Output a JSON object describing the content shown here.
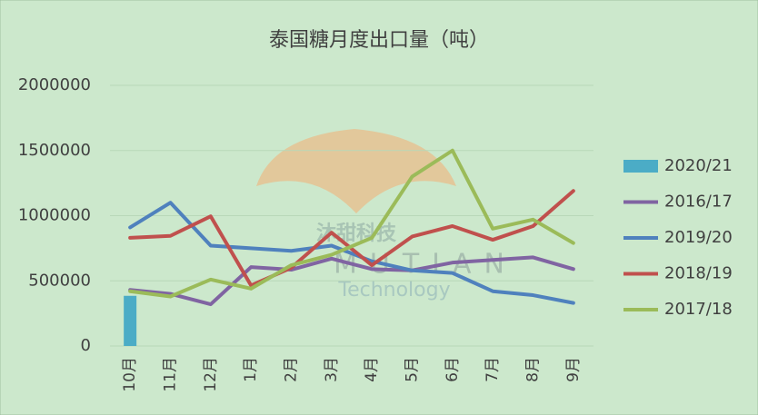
{
  "chart_data": {
    "type": "line",
    "title": "泰国糖月度出口量（吨）",
    "categories": [
      "10月",
      "11月",
      "12月",
      "1月",
      "2月",
      "3月",
      "4月",
      "5月",
      "6月",
      "7月",
      "8月",
      "9月"
    ],
    "ylim": [
      0,
      2000000
    ],
    "yticks": [
      0,
      500000,
      1000000,
      1500000,
      2000000
    ],
    "grid": true,
    "legend": "right",
    "series": [
      {
        "name": "2020/21",
        "type": "bar",
        "color": "#4bacc6",
        "values": [
          385000,
          null,
          null,
          null,
          null,
          null,
          null,
          null,
          null,
          null,
          null,
          null
        ]
      },
      {
        "name": "2016/17",
        "color": "#8064a2",
        "values": [
          430000,
          400000,
          320000,
          605000,
          585000,
          670000,
          590000,
          580000,
          640000,
          660000,
          680000,
          590000
        ]
      },
      {
        "name": "2019/20",
        "color": "#4f81bd",
        "values": [
          910000,
          1100000,
          770000,
          750000,
          730000,
          770000,
          650000,
          580000,
          560000,
          420000,
          390000,
          330000
        ]
      },
      {
        "name": "2018/19",
        "color": "#c0504d",
        "values": [
          830000,
          845000,
          995000,
          465000,
          600000,
          870000,
          620000,
          840000,
          920000,
          815000,
          920000,
          1190000
        ]
      },
      {
        "name": "2017/18",
        "color": "#9bbb59",
        "values": [
          420000,
          380000,
          510000,
          440000,
          620000,
          700000,
          830000,
          1300000,
          1500000,
          900000,
          970000,
          790000
        ]
      }
    ],
    "watermark": {
      "cn": "沐甜科技",
      "en": "MUTIAN",
      "sub": "Technology"
    }
  }
}
